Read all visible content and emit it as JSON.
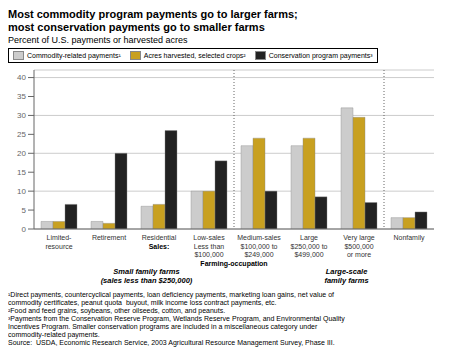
{
  "chart_data": {
    "type": "bar",
    "title": "Most commodity program payments go to larger farms;\nmost conservation payments go to smaller farms",
    "subtitle": "Percent of U.S. payments or harvested acres",
    "categories": [
      "Limited-\nresource",
      "Retirement",
      "Residential",
      "Low-sales\nLess than\n$100,000",
      "Medium-sales\n$100,000 to\n$249,000",
      "Large\n$250,000 to\n$499,000",
      "Very large\n$500,000\nor more",
      "Nonfamily"
    ],
    "series": [
      {
        "name": "Commodity-related payments¹",
        "color": "#cccccc",
        "values": [
          2.0,
          2.0,
          6.0,
          10.0,
          22.0,
          22.0,
          32.0,
          3.0
        ]
      },
      {
        "name": "Acres harvested, selected crops²",
        "color": "#c8a020",
        "values": [
          2.0,
          1.5,
          6.5,
          10.0,
          24.0,
          24.0,
          29.5,
          3.0
        ]
      },
      {
        "name": "Conservation program payments³",
        "color": "#222222",
        "values": [
          6.5,
          20.0,
          26.0,
          18.0,
          10.0,
          8.5,
          7.0,
          4.5
        ]
      }
    ],
    "ylim": [
      0,
      42
    ],
    "yticks": [
      0,
      5,
      10,
      15,
      20,
      25,
      30,
      35,
      40
    ],
    "grid": true,
    "annotations": [
      "Sales:",
      "Farming-occupation",
      "Small family farms\n(sales less than $250,000)",
      "Large-scale\nfamily farms"
    ],
    "footnotes": [
      "¹Direct payments, countercyclical payments, loan deficiency payments, marketing loan gains, net value of",
      "commodity certificates, peanut quota  buyout, milk income loss contract payments, etc.",
      "²Food and feed grains, soybeans, other oilseeds, cotton, and peanuts.",
      "³Payments from the Conservation Reserve Program, Wetlands Reserve Program, and Environmental Quality",
      "Incentives Program. Smaller conservation programs are included in a miscellaneous category under",
      "commodity-related payments.",
      "Source:  USDA, Economic Research Service, 2003 Agricultural Resource Management Survey, Phase III."
    ]
  }
}
